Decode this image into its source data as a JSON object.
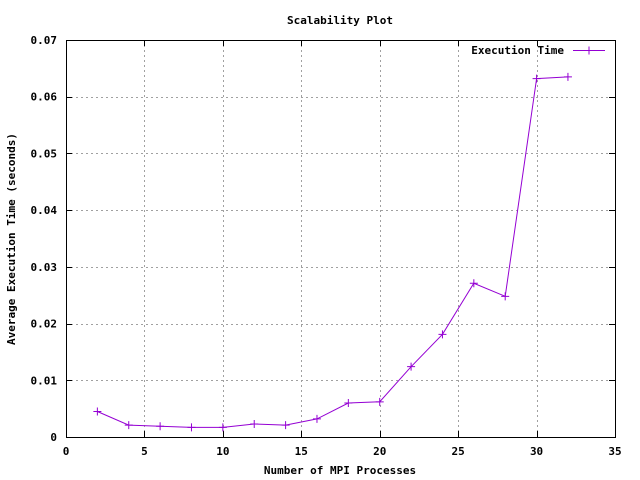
{
  "chart_data": {
    "type": "line",
    "title": "Scalability Plot",
    "xlabel": "Number of MPI Processes",
    "ylabel": "Average Execution Time (seconds)",
    "xlim": [
      0,
      35
    ],
    "ylim": [
      0,
      0.07
    ],
    "xticks": [
      0,
      5,
      10,
      15,
      20,
      25,
      30,
      35
    ],
    "xtick_labels": [
      "0",
      "5",
      "10",
      "15",
      "20",
      "25",
      "30",
      "35"
    ],
    "yticks": [
      0,
      0.01,
      0.02,
      0.03,
      0.04,
      0.05,
      0.06,
      0.07
    ],
    "ytick_labels": [
      "0",
      "0.01",
      "0.02",
      "0.03",
      "0.04",
      "0.05",
      "0.06",
      "0.07"
    ],
    "grid": true,
    "legend_position": "top-right",
    "series": [
      {
        "name": "Execution Time",
        "color": "#9400d3",
        "marker": "plus",
        "x": [
          2,
          4,
          6,
          8,
          10,
          12,
          14,
          16,
          18,
          20,
          22,
          24,
          26,
          28,
          30,
          32
        ],
        "y": [
          0.0045,
          0.0021,
          0.0019,
          0.0017,
          0.0017,
          0.0023,
          0.0021,
          0.0032,
          0.006,
          0.0062,
          0.0124,
          0.0181,
          0.0271,
          0.0248,
          0.0632,
          0.0635
        ]
      }
    ]
  }
}
